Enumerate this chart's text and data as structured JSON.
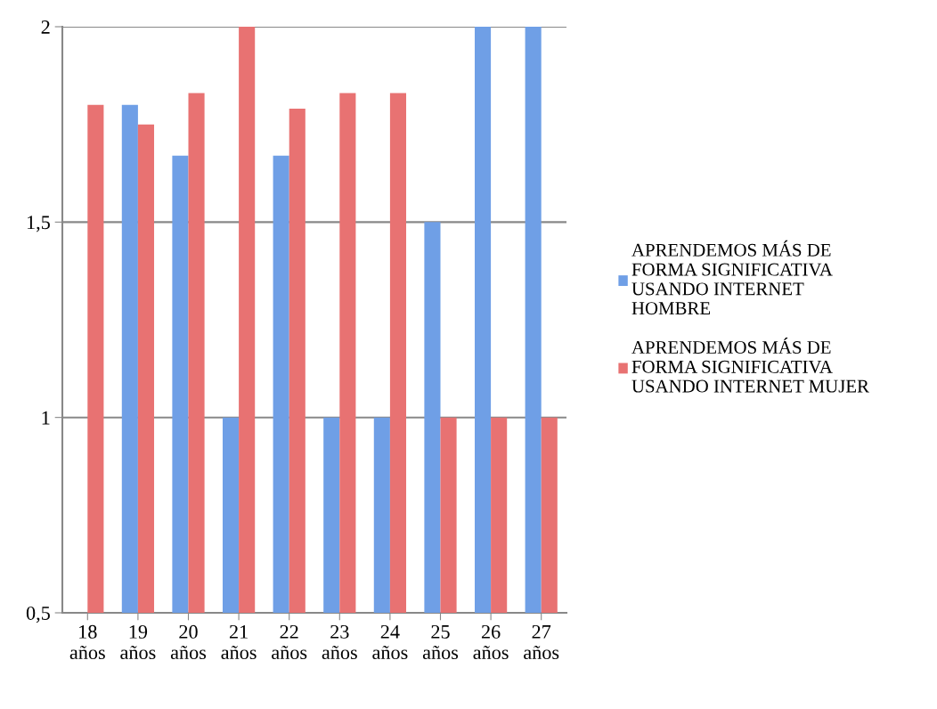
{
  "chart_data": {
    "type": "bar",
    "categories": [
      "18\naños",
      "19\naños",
      "20\naños",
      "21\naños",
      "22\naños",
      "23\naños",
      "24\naños",
      "25\naños",
      "26\naños",
      "27\naños"
    ],
    "series": [
      {
        "name": "APRENDEMOS MÁS DE\nFORMA SIGNIFICATIVA\nUSANDO INTERNET\nHOMBRE",
        "color": "#6f9fe6",
        "values": [
          null,
          1.8,
          1.67,
          1,
          1.67,
          1,
          1,
          1.5,
          2,
          2
        ]
      },
      {
        "name": "APRENDEMOS MÁS DE\nFORMA SIGNIFICATIVA\nUSANDO INTERNET MUJER",
        "color": "#e87272",
        "values": [
          1.8,
          1.75,
          1.83,
          2,
          1.79,
          1.83,
          1.83,
          1,
          1,
          1
        ]
      }
    ],
    "ylim": [
      0.5,
      2
    ],
    "yticks": [
      {
        "value": 0.5,
        "label": "0,5"
      },
      1,
      {
        "value": 1.5,
        "label": "1,5"
      },
      2
    ],
    "grid": "y",
    "legend": "right"
  }
}
